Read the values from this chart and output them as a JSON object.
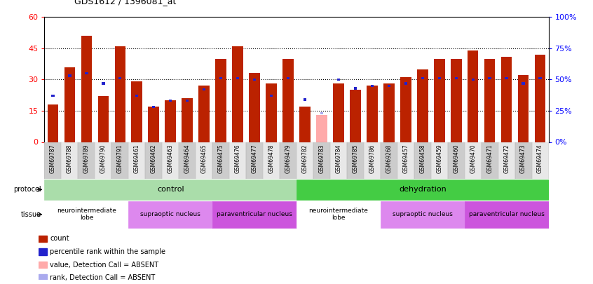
{
  "title": "GDS1612 / 1396081_at",
  "samples": [
    "GSM69787",
    "GSM69788",
    "GSM69789",
    "GSM69790",
    "GSM69791",
    "GSM69461",
    "GSM69462",
    "GSM69463",
    "GSM69464",
    "GSM69465",
    "GSM69475",
    "GSM69476",
    "GSM69477",
    "GSM69478",
    "GSM69479",
    "GSM69782",
    "GSM69783",
    "GSM69784",
    "GSM69785",
    "GSM69786",
    "GSM69268",
    "GSM69457",
    "GSM69458",
    "GSM69459",
    "GSM69460",
    "GSM69470",
    "GSM69471",
    "GSM69472",
    "GSM69473",
    "GSM69474"
  ],
  "count_values": [
    18,
    36,
    51,
    22,
    46,
    29,
    17,
    20,
    21,
    27,
    40,
    46,
    33,
    28,
    40,
    17,
    13,
    28,
    25,
    27,
    28,
    31,
    35,
    40,
    40,
    44,
    40,
    41,
    32,
    42
  ],
  "rank_values_pct": [
    37,
    53,
    55,
    47,
    51,
    37,
    28,
    33,
    33,
    42,
    51,
    51,
    50,
    37,
    51,
    34,
    23,
    50,
    43,
    45,
    45,
    47,
    51,
    51,
    51,
    50,
    51,
    51,
    47,
    51
  ],
  "absent_indices": [
    16
  ],
  "protocol_groups": [
    {
      "label": "control",
      "start": 0,
      "end": 14,
      "color": "#aaddaa"
    },
    {
      "label": "dehydration",
      "start": 15,
      "end": 29,
      "color": "#44cc44"
    }
  ],
  "tissue_groups": [
    {
      "label": "neurointermediate\nlobe",
      "start": 0,
      "end": 4,
      "color": "#ffffff"
    },
    {
      "label": "supraoptic nucleus",
      "start": 5,
      "end": 9,
      "color": "#dd88ee"
    },
    {
      "label": "paraventricular nucleus",
      "start": 10,
      "end": 14,
      "color": "#cc55dd"
    },
    {
      "label": "neurointermediate\nlobe",
      "start": 15,
      "end": 19,
      "color": "#ffffff"
    },
    {
      "label": "supraoptic nucleus",
      "start": 20,
      "end": 24,
      "color": "#dd88ee"
    },
    {
      "label": "paraventricular nucleus",
      "start": 25,
      "end": 29,
      "color": "#cc55dd"
    }
  ],
  "bar_color_normal": "#bb2200",
  "bar_color_absent": "#ffaaaa",
  "rank_color_normal": "#2222cc",
  "rank_color_absent": "#aaaaee",
  "ylim_left": [
    0,
    60
  ],
  "ylim_right": [
    0,
    100
  ],
  "yticks_left": [
    0,
    15,
    30,
    45,
    60
  ],
  "yticks_right": [
    0,
    25,
    50,
    75,
    100
  ],
  "legend_items": [
    {
      "color": "#bb2200",
      "label": "count"
    },
    {
      "color": "#2222cc",
      "label": "percentile rank within the sample"
    },
    {
      "color": "#ffaaaa",
      "label": "value, Detection Call = ABSENT"
    },
    {
      "color": "#aaaaee",
      "label": "rank, Detection Call = ABSENT"
    }
  ]
}
